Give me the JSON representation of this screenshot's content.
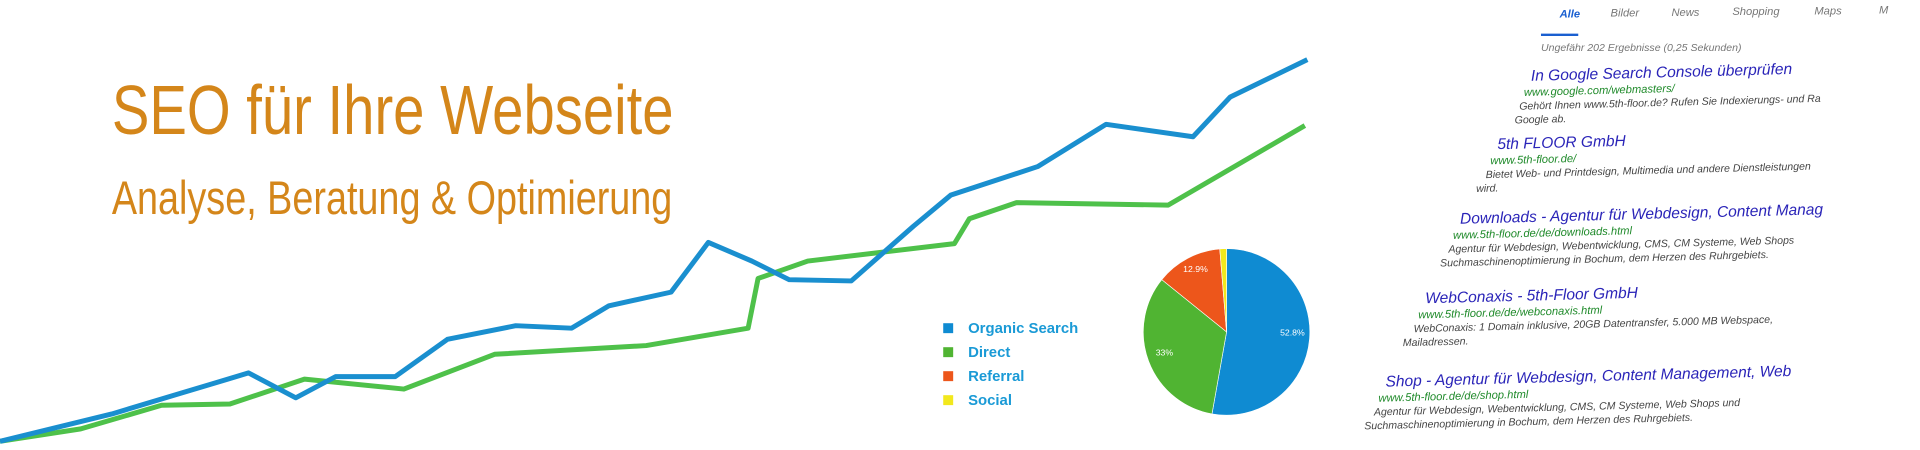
{
  "header": {
    "title": "SEO für Ihre Webseite",
    "subtitle": "Analyse, Beratung & Optimierung"
  },
  "pie": {
    "categories": [
      "Organic Search",
      "Direct",
      "Referral",
      "Social"
    ],
    "values": [
      52.8,
      33,
      12.9,
      1.3
    ],
    "value_labels": [
      "52.8%",
      "33%",
      "12.9%",
      null
    ],
    "colors": [
      "#0f8bd2",
      "#50b432",
      "#ed561b",
      "#f2e81d"
    ]
  },
  "search": {
    "tabs": [
      "Alle",
      "Bilder",
      "News",
      "Shopping",
      "Maps",
      "M"
    ],
    "stats": "Ungefähr 202 Ergebnisse (0,25 Sekunden)",
    "results": [
      {
        "title": "In Google Search Console überprüfen",
        "url": "www.google.com/webmasters/",
        "snippet": [
          "Gehört Ihnen www.5th-floor.de? Rufen Sie Indexierungs- und Ra",
          "Google ab."
        ]
      },
      {
        "title": "5th FLOOR GmbH",
        "url": "www.5th-floor.de/",
        "snippet": [
          "Bietet Web- und Printdesign, Multimedia und andere Dienstleistungen",
          "wird."
        ]
      },
      {
        "title": "Downloads - Agentur für Webdesign, Content Manag",
        "url": "www.5th-floor.de/de/downloads.html",
        "snippet": [
          "Agentur für Webdesign, Webentwicklung, CMS, CM Systeme, Web Shops",
          "Suchmaschinenoptimierung in Bochum, dem Herzen des Ruhrgebiets."
        ]
      },
      {
        "title": "WebConaxis - 5th-Floor GmbH",
        "url": "www.5th-floor.de/de/webconaxis.html",
        "snippet": [
          "WebConaxis: 1 Domain inklusive, 20GB Datentransfer, 5.000 MB Webspace,",
          "Mailadressen."
        ]
      },
      {
        "title": "Shop - Agentur für Webdesign, Content Management, Web",
        "url": "www.5th-floor.de/de/shop.html",
        "snippet": [
          "Agentur für Webdesign, Webentwicklung, CMS, CM Systeme, Web Shops und",
          "Suchmaschinenoptimierung in Bochum, dem Herzen des Ruhrgebiets."
        ]
      }
    ]
  }
}
